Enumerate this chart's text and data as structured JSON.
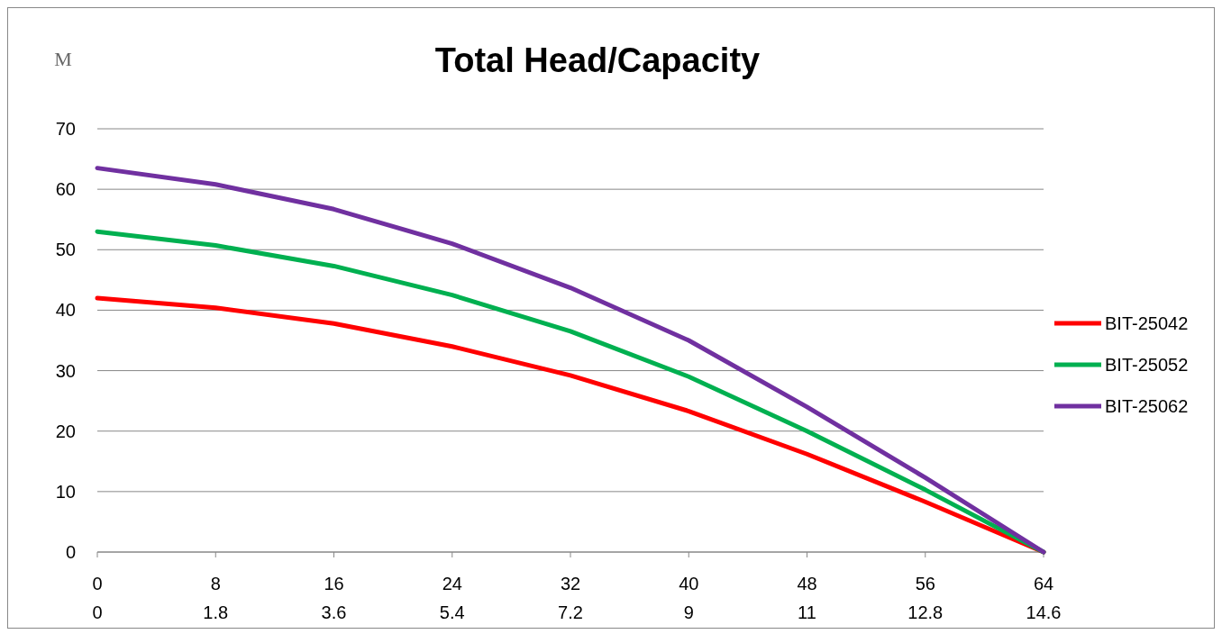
{
  "chart_data": {
    "type": "line",
    "title": "Total Head/Capacity",
    "ylabel": "M",
    "categories": [
      "0\n0",
      "8\n1.8",
      "16\n3.6",
      "24\n5.4",
      "32\n7.2",
      "40\n9",
      "48\n11",
      "56\n12.8",
      "64\n14.6"
    ],
    "series": [
      {
        "name": "BIT-25042",
        "color": "#ff0000",
        "values": [
          42,
          40.4,
          37.8,
          34,
          29.2,
          23.3,
          16.2,
          8.3,
          0
        ]
      },
      {
        "name": "BIT-25052",
        "color": "#00b050",
        "values": [
          53,
          50.7,
          47.3,
          42.5,
          36.5,
          29,
          20,
          10.3,
          0
        ]
      },
      {
        "name": "BIT-25062",
        "color": "#7030a0",
        "values": [
          63.5,
          60.8,
          56.7,
          51,
          43.7,
          35,
          24,
          12.3,
          0
        ]
      }
    ],
    "ylim": [
      0,
      70
    ],
    "yticks": [
      0,
      10,
      20,
      30,
      40,
      50,
      60,
      70
    ],
    "grid": "y",
    "legend": "right",
    "marker": "none",
    "line_style": "solid"
  }
}
